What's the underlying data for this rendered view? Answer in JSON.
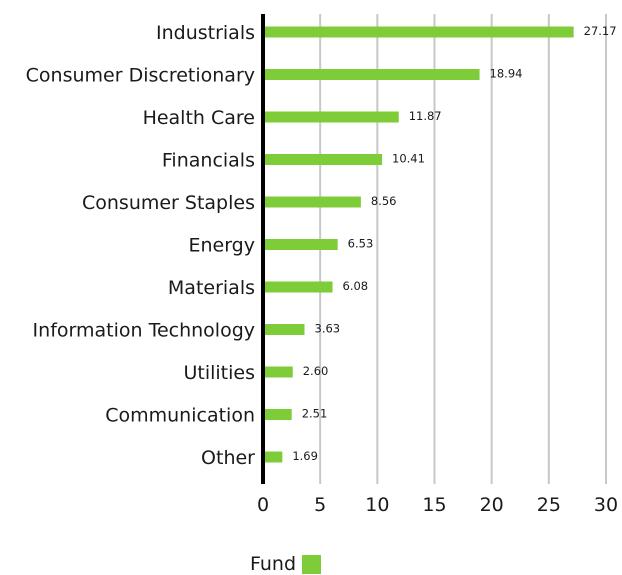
{
  "chart_data": {
    "type": "bar",
    "orientation": "horizontal",
    "categories": [
      "Industrials",
      "Consumer Discretionary",
      "Health Care",
      "Financials",
      "Consumer Staples",
      "Energy",
      "Materials",
      "Information Technology",
      "Utilities",
      "Communication",
      "Other"
    ],
    "series": [
      {
        "name": "Fund",
        "values": [
          27.17,
          18.94,
          11.87,
          10.41,
          8.56,
          6.53,
          6.08,
          3.63,
          2.6,
          2.51,
          1.69
        ],
        "labels": [
          "27.17",
          "18.94",
          "11.87",
          "10.41",
          "8.56",
          "6.53",
          "6.08",
          "3.63",
          "2.60",
          "2.51",
          "1.69"
        ]
      }
    ],
    "xlim": [
      0,
      30
    ],
    "xticks": [
      "0",
      "5",
      "10",
      "15",
      "20",
      "25",
      "30"
    ],
    "grid": "vertical",
    "legend_position": "bottom",
    "colors": {
      "bar": "#7dcc38",
      "grid": "#c8c8c8",
      "axis": "#000000"
    }
  }
}
